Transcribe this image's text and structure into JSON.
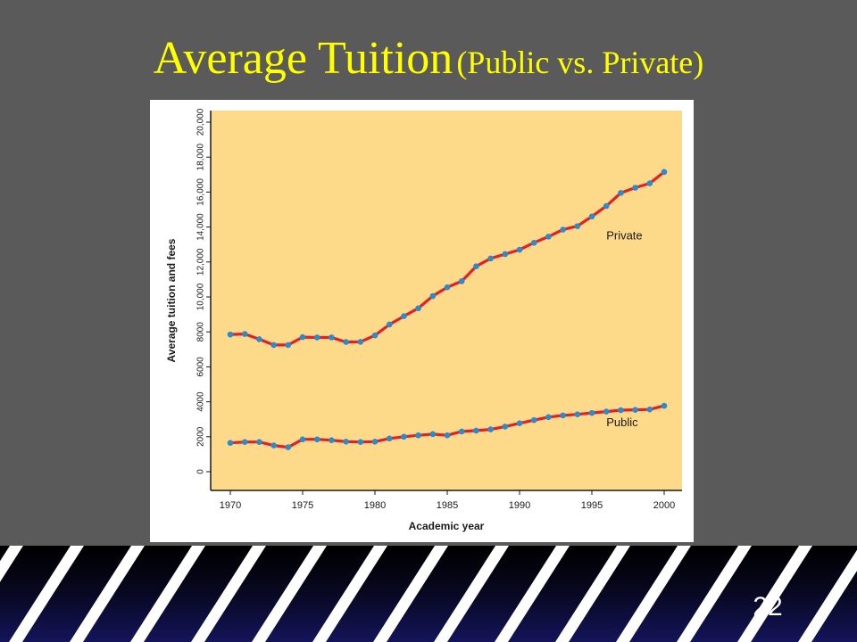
{
  "slide": {
    "title_main": "Average Tuition",
    "title_sub": "(Public vs. Private)",
    "page_number": "22"
  },
  "colors": {
    "background": "#5a5a5a",
    "title": "#ffff00",
    "plot_area": "#fdd98a",
    "line": "#e0202a",
    "marker": "#2a8ccc",
    "footer_stripes": "#ffffff"
  },
  "chart_data": {
    "type": "line",
    "title": "",
    "xlabel": "Academic year",
    "ylabel": "Average tuition and fees",
    "xlim": [
      1969,
      2001
    ],
    "ylim": [
      0,
      20000
    ],
    "xticks": [
      1970,
      1975,
      1980,
      1985,
      1990,
      1995,
      2000
    ],
    "yticks": [
      0,
      2000,
      4000,
      6000,
      8000,
      10000,
      12000,
      14000,
      16000,
      18000,
      20000
    ],
    "ytick_labels": [
      "0",
      "2000",
      "4000",
      "6000",
      "8000",
      "10,000",
      "12,000",
      "14,000",
      "16,000",
      "18,000",
      "20,000"
    ],
    "grid": false,
    "legend": "inline labels",
    "x": [
      1970,
      1971,
      1972,
      1973,
      1974,
      1975,
      1976,
      1977,
      1978,
      1979,
      1980,
      1981,
      1982,
      1983,
      1984,
      1985,
      1986,
      1987,
      1988,
      1989,
      1990,
      1991,
      1992,
      1993,
      1994,
      1995,
      1996,
      1997,
      1998,
      1999,
      2000
    ],
    "series": [
      {
        "name": "Private",
        "values": [
          7850,
          7880,
          7580,
          7250,
          7250,
          7700,
          7680,
          7680,
          7420,
          7430,
          7800,
          8420,
          8900,
          9350,
          10050,
          10550,
          10900,
          11750,
          12200,
          12450,
          12700,
          13100,
          13450,
          13850,
          14050,
          14600,
          15200,
          15950,
          16250,
          16500,
          17150
        ]
      },
      {
        "name": "Public",
        "values": [
          1650,
          1700,
          1700,
          1500,
          1400,
          1850,
          1850,
          1800,
          1720,
          1700,
          1720,
          1900,
          2000,
          2080,
          2150,
          2080,
          2300,
          2350,
          2420,
          2580,
          2770,
          2950,
          3120,
          3220,
          3280,
          3360,
          3440,
          3520,
          3540,
          3560,
          3770
        ]
      }
    ],
    "annotations": [
      {
        "text": "Private",
        "x": 1996,
        "y": 13300
      },
      {
        "text": "Public",
        "x": 1996,
        "y": 2600
      }
    ]
  }
}
